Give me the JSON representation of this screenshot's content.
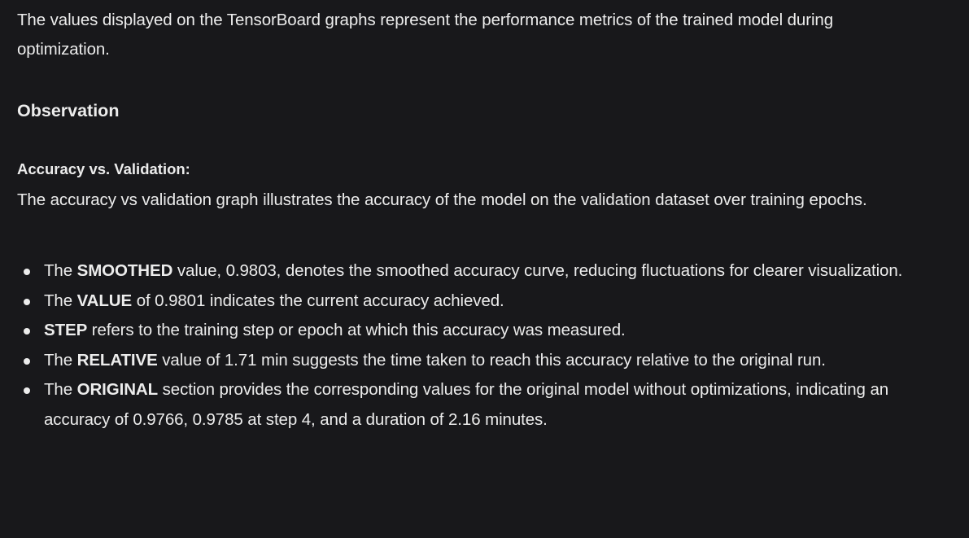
{
  "intro": "The values displayed on the TensorBoard graphs represent the performance metrics of the trained model during optimization.",
  "heading": "Observation",
  "subheading": "Accuracy vs. Validation:",
  "description": "The accuracy vs validation graph illustrates the accuracy of the model on the validation dataset over training epochs.",
  "bullets": [
    {
      "pre": "The ",
      "bold": "SMOOTHED",
      "post": " value, 0.9803, denotes the smoothed accuracy curve, reducing fluctuations for clearer visualization."
    },
    {
      "pre": "The ",
      "bold": "VALUE",
      "post": " of 0.9801 indicates the current accuracy achieved."
    },
    {
      "pre": "",
      "bold": "STEP",
      "post": " refers to the training step or epoch at which this accuracy was measured."
    },
    {
      "pre": "The ",
      "bold": "RELATIVE",
      "post": " value of 1.71 min suggests the time taken to reach this accuracy relative to the original run."
    },
    {
      "pre": "The ",
      "bold": "ORIGINAL",
      "post": " section provides the corresponding values for the original model without optimizations, indicating an accuracy of 0.9766, 0.9785 at step 4, and a duration of 2.16 minutes."
    }
  ]
}
